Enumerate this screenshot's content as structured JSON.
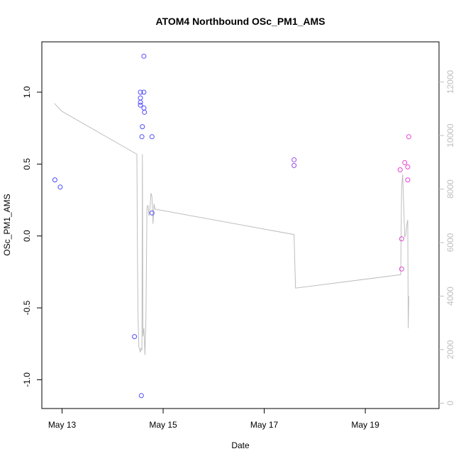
{
  "chart_data": {
    "type": "scatter",
    "title": "ATOM4 Northbound OSc_PM1_AMS",
    "xlabel": "Date",
    "ylabel": "OSc_PM1_AMS",
    "x_type": "date",
    "xlim": [
      "2023-05-12T14:24",
      "2023-05-20T11:00"
    ],
    "ylim": [
      -1.2,
      1.35
    ],
    "x_ticks": [
      {
        "value": "2023-05-13T00:00",
        "label": "May 13"
      },
      {
        "value": "2023-05-15T00:00",
        "label": "May 15"
      },
      {
        "value": "2023-05-17T00:00",
        "label": "May 17"
      },
      {
        "value": "2023-05-19T00:00",
        "label": "May 19"
      }
    ],
    "y_ticks": [
      -1.0,
      -0.5,
      0.0,
      0.5,
      1.0
    ],
    "y_tick_labels": [
      "-1.0",
      "-0.5",
      "0.0",
      "0.5",
      "1.0"
    ],
    "y2lim": [
      -200,
      13500
    ],
    "y2_ticks": [
      0,
      2000,
      4000,
      6000,
      8000,
      10000,
      12000
    ],
    "y2_tick_labels": [
      "0",
      "2000",
      "4000",
      "6000",
      "8000",
      "10000",
      "12000"
    ],
    "grid": false,
    "legend": "none",
    "colors": {
      "points_early": "#4b4bff",
      "points_mid": "#7b4be6",
      "points_late": "#e040d6",
      "line": "#bebebe",
      "axes": "#000000"
    },
    "series": [
      {
        "kind": "points",
        "marker": "open-circle",
        "axis": "left",
        "points": [
          {
            "x": "2023-05-12T20:36",
            "y": 0.39,
            "color": "#4b4bff"
          },
          {
            "x": "2023-05-12T23:07",
            "y": 0.34,
            "color": "#4b4bff"
          },
          {
            "x": "2023-05-14T10:24",
            "y": -0.7,
            "color": "#4f4bfc"
          },
          {
            "x": "2023-05-14T13:12",
            "y": 1.0,
            "color": "#4f4bfc"
          },
          {
            "x": "2023-05-14T13:12",
            "y": 0.96,
            "color": "#4f4bfc"
          },
          {
            "x": "2023-05-14T13:12",
            "y": 0.93,
            "color": "#4f4bfc"
          },
          {
            "x": "2023-05-14T13:12",
            "y": 0.91,
            "color": "#4f4bfc"
          },
          {
            "x": "2023-05-14T13:40",
            "y": -1.11,
            "color": "#504bfb"
          },
          {
            "x": "2023-05-14T13:55",
            "y": 0.69,
            "color": "#504bfb"
          },
          {
            "x": "2023-05-14T14:09",
            "y": 0.76,
            "color": "#504bfb"
          },
          {
            "x": "2023-05-14T14:52",
            "y": 1.25,
            "color": "#504bfb"
          },
          {
            "x": "2023-05-14T14:52",
            "y": 1.0,
            "color": "#504bfb"
          },
          {
            "x": "2023-05-14T14:52",
            "y": 0.89,
            "color": "#504bfb"
          },
          {
            "x": "2023-05-14T15:07",
            "y": 0.86,
            "color": "#504bfb"
          },
          {
            "x": "2023-05-14T18:43",
            "y": 0.69,
            "color": "#524bfa"
          },
          {
            "x": "2023-05-14T18:43",
            "y": 0.16,
            "color": "#524bfa"
          },
          {
            "x": "2023-05-17T14:09",
            "y": 0.53,
            "color": "#9a47e3"
          },
          {
            "x": "2023-05-17T14:09",
            "y": 0.49,
            "color": "#9a47e3"
          },
          {
            "x": "2023-05-19T16:33",
            "y": 0.46,
            "color": "#e440d6"
          },
          {
            "x": "2023-05-19T17:16",
            "y": -0.02,
            "color": "#e440d6"
          },
          {
            "x": "2023-05-19T17:16",
            "y": -0.23,
            "color": "#e440d6"
          },
          {
            "x": "2023-05-19T18:43",
            "y": 0.51,
            "color": "#e640d5"
          },
          {
            "x": "2023-05-19T20:09",
            "y": 0.39,
            "color": "#e640d5"
          },
          {
            "x": "2023-05-19T20:09",
            "y": 0.48,
            "color": "#e640d5"
          },
          {
            "x": "2023-05-19T20:38",
            "y": 0.69,
            "color": "#e640d5"
          }
        ]
      },
      {
        "kind": "line",
        "axis": "right",
        "points": [
          {
            "x": "2023-05-12T20:24",
            "y": 11200
          },
          {
            "x": "2023-05-12T22:48",
            "y": 11000
          },
          {
            "x": "2023-05-13T00:00",
            "y": 10900
          },
          {
            "x": "2023-05-14T11:31",
            "y": 9300
          },
          {
            "x": "2023-05-14T11:50",
            "y": 5200
          },
          {
            "x": "2023-05-14T12:05",
            "y": 3300
          },
          {
            "x": "2023-05-14T12:29",
            "y": 2100
          },
          {
            "x": "2023-05-14T13:12",
            "y": 1900
          },
          {
            "x": "2023-05-14T13:26",
            "y": 2050
          },
          {
            "x": "2023-05-14T13:55",
            "y": 2000
          },
          {
            "x": "2023-05-14T14:09",
            "y": 9300
          },
          {
            "x": "2023-05-14T14:24",
            "y": 2500
          },
          {
            "x": "2023-05-14T14:52",
            "y": 2800
          },
          {
            "x": "2023-05-14T15:22",
            "y": 1800
          },
          {
            "x": "2023-05-14T15:50",
            "y": 3200
          },
          {
            "x": "2023-05-14T16:19",
            "y": 7300
          },
          {
            "x": "2023-05-14T16:48",
            "y": 7400
          },
          {
            "x": "2023-05-14T17:16",
            "y": 7000
          },
          {
            "x": "2023-05-14T17:45",
            "y": 7300
          },
          {
            "x": "2023-05-14T18:14",
            "y": 7850
          },
          {
            "x": "2023-05-14T18:43",
            "y": 7700
          },
          {
            "x": "2023-05-14T19:12",
            "y": 6700
          },
          {
            "x": "2023-05-14T19:40",
            "y": 7450
          },
          {
            "x": "2023-05-14T20:09",
            "y": 7250
          },
          {
            "x": "2023-05-17T14:09",
            "y": 6300
          },
          {
            "x": "2023-05-17T14:52",
            "y": 4300
          },
          {
            "x": "2023-05-19T16:48",
            "y": 4800
          },
          {
            "x": "2023-05-19T17:16",
            "y": 8100
          },
          {
            "x": "2023-05-19T17:45",
            "y": 8550
          },
          {
            "x": "2023-05-19T18:14",
            "y": 7400
          },
          {
            "x": "2023-05-19T18:43",
            "y": 6200
          },
          {
            "x": "2023-05-19T19:12",
            "y": 6300
          },
          {
            "x": "2023-05-19T19:40",
            "y": 6650
          },
          {
            "x": "2023-05-19T20:09",
            "y": 6850
          },
          {
            "x": "2023-05-19T20:24",
            "y": 2800
          },
          {
            "x": "2023-05-19T20:38",
            "y": 4000
          }
        ]
      }
    ]
  }
}
